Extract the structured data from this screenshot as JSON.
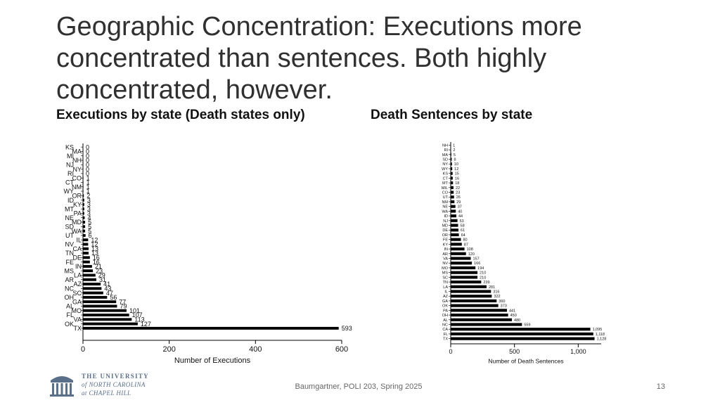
{
  "slide": {
    "title": "Geographic Concentration: Executions more concentrated than sentences. Both highly concentrated, however.",
    "left_heading": "Executions by state (Death states only)",
    "right_heading": "Death Sentences by state",
    "footer": "Baumgartner, POLI 203, Spring 2025",
    "page_number": "13",
    "logo": {
      "line1": "THE UNIVERSITY",
      "line2": "of NORTH CAROLINA",
      "line3": "at CHAPEL HILL",
      "icon": "old-well-icon",
      "color": "#5a6f8a"
    }
  },
  "chart_data": [
    {
      "type": "bar",
      "orientation": "horizontal",
      "title": "",
      "xlabel": "Number of Executions",
      "ylabel": "",
      "xlim": [
        0,
        600
      ],
      "xticks": [
        "0",
        "200",
        "400",
        "600"
      ],
      "xtick_values": [
        0,
        200,
        400,
        600
      ],
      "grid": false,
      "bar_color": "#000000",
      "categories": [
        "KS",
        "MA",
        "MI",
        "NH",
        "NJ",
        "NY",
        "RI",
        "CO",
        "CT",
        "NM",
        "WY",
        "OR",
        "ID",
        "KY",
        "MT",
        "PA",
        "NE",
        "MD",
        "SD",
        "WA",
        "UT",
        "IL",
        "NV",
        "CA",
        "TN",
        "DE",
        "FE",
        "IN",
        "MS",
        "LA",
        "AR",
        "AZ",
        "NC",
        "SC",
        "OH",
        "GA",
        "AL",
        "MO",
        "FL",
        "VA",
        "OK",
        "TX"
      ],
      "values": [
        0,
        0,
        0,
        0,
        0,
        0,
        0,
        1,
        1,
        1,
        1,
        2,
        3,
        3,
        3,
        3,
        4,
        5,
        5,
        5,
        6,
        12,
        12,
        13,
        13,
        16,
        16,
        21,
        23,
        29,
        31,
        41,
        43,
        47,
        56,
        77,
        79,
        101,
        107,
        113,
        127,
        593
      ],
      "value_labels": [
        "0",
        "0",
        "0",
        "0",
        "0",
        "0",
        "0",
        "1",
        "1",
        "1",
        "1",
        "2",
        "3",
        "3",
        "3",
        "3",
        "4",
        "5",
        "5",
        "5",
        "6",
        "12",
        "12",
        "13",
        "13",
        "16",
        "16",
        "21",
        "23",
        "29",
        "31",
        "41",
        "43",
        "47",
        "56",
        "77",
        "79",
        "101",
        "107",
        "113",
        "127",
        "593"
      ]
    },
    {
      "type": "bar",
      "orientation": "horizontal",
      "title": "",
      "xlabel": "Number of Death Sentences",
      "ylabel": "",
      "xlim": [
        0,
        1180
      ],
      "xticks": [
        "0",
        "500",
        "1,000"
      ],
      "xtick_values": [
        0,
        500,
        1000
      ],
      "grid": false,
      "bar_color": "#000000",
      "categories": [
        "NH",
        "RI",
        "MA",
        "SD",
        "NY",
        "WY",
        "KS",
        "CT",
        "MT",
        "MIL",
        "CO",
        "UT",
        "NM",
        "NE",
        "WA",
        "ID",
        "NJ",
        "MD",
        "DE",
        "OR",
        "FE",
        "KY",
        "IN",
        "AR",
        "VA",
        "NV",
        "MO",
        "MS",
        "SC",
        "TN",
        "LA",
        "IL",
        "AZ",
        "GA",
        "OK",
        "PA",
        "OH",
        "AL",
        "NC",
        "CA",
        "FL",
        "TX"
      ],
      "values": [
        1,
        2,
        5,
        8,
        10,
        12,
        15,
        16,
        18,
        22,
        23,
        26,
        29,
        37,
        40,
        44,
        53,
        58,
        61,
        64,
        80,
        87,
        108,
        120,
        157,
        166,
        194,
        210,
        210,
        239,
        281,
        316,
        322,
        360,
        373,
        441,
        450,
        480,
        559,
        1095,
        1118,
        1128
      ],
      "value_labels": [
        "1",
        "2",
        "5",
        "8",
        "10",
        "12",
        "15",
        "16",
        "18",
        "22",
        "23",
        "26",
        "29",
        "37",
        "40",
        "44",
        "53",
        "58",
        "61",
        "64",
        "80",
        "87",
        "108",
        "120",
        "157",
        "166",
        "194",
        "210",
        "210",
        "239",
        "281",
        "316",
        "322",
        "360",
        "373",
        "441",
        "450",
        "480",
        "559",
        "1,095",
        "1,118",
        "1,128"
      ]
    }
  ]
}
